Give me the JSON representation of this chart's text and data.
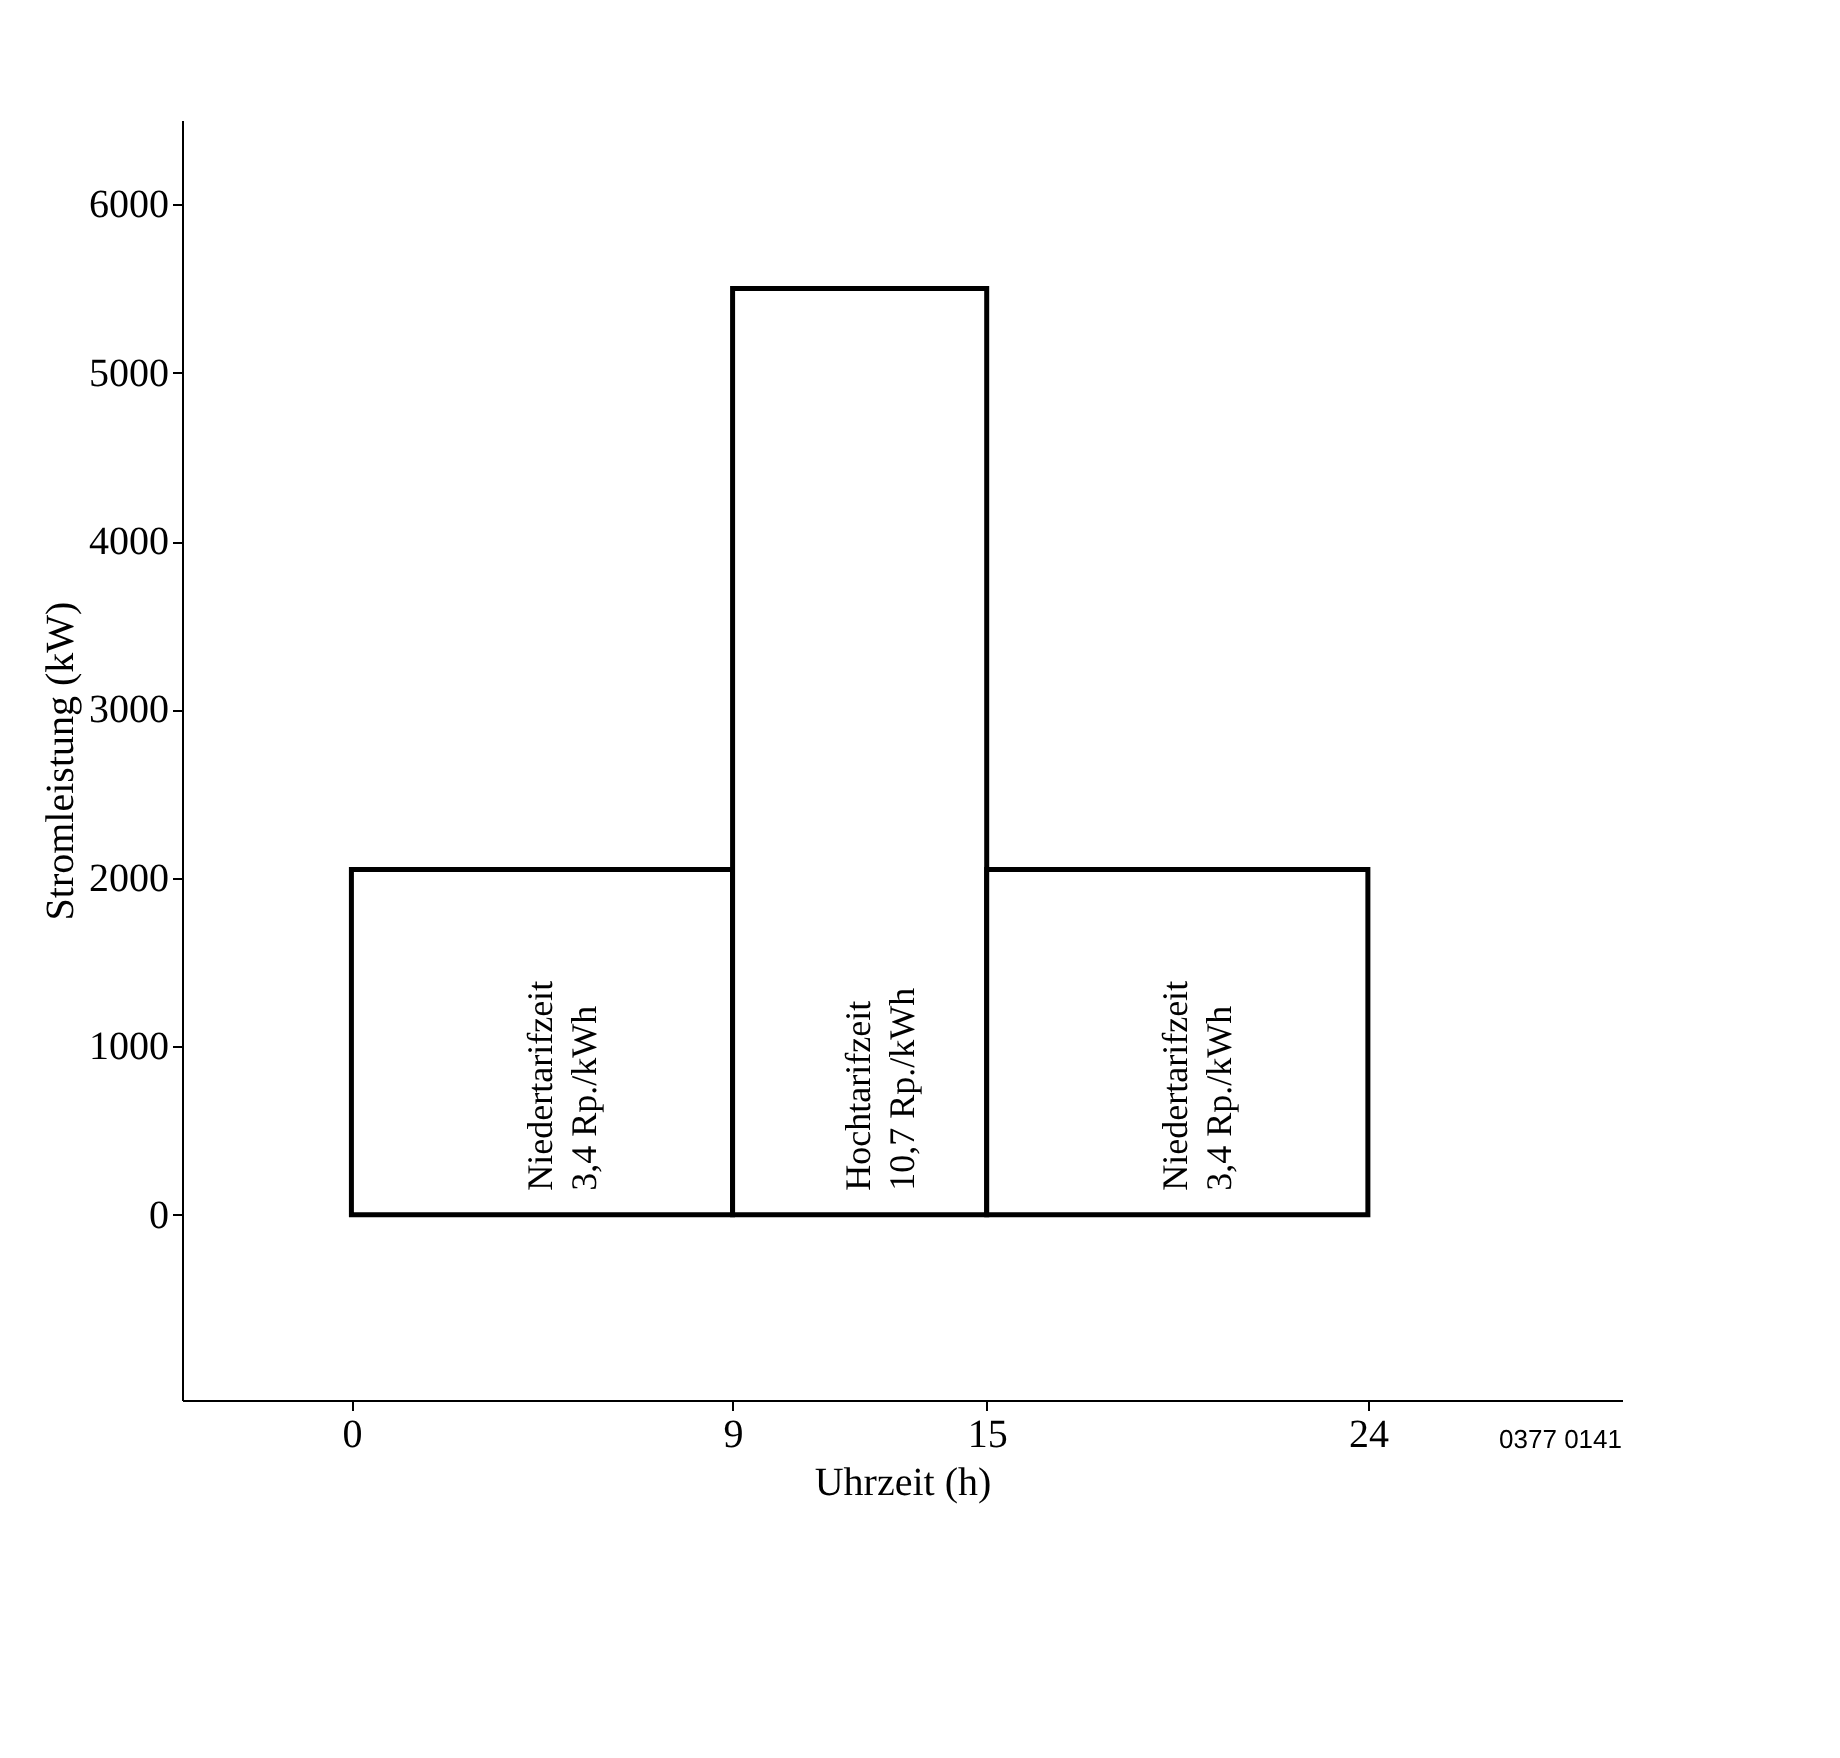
{
  "chart_data": {
    "type": "histogram",
    "xlabel": "Uhrzeit (h)",
    "ylabel": "Stromleistung (kW)",
    "bins": [
      0,
      9,
      15,
      24
    ],
    "values": [
      2050,
      5500,
      2050
    ],
    "color": "#ffffff",
    "xlim": [
      -4,
      30
    ],
    "xticks": [
      0,
      9,
      15,
      24
    ],
    "ylim": [
      -1100,
      6500
    ],
    "yticks": [
      0,
      1000,
      2000,
      3000,
      4000,
      5000,
      6000
    ],
    "grid": false,
    "annotations": [
      "Niedertarifzeit\n3,4 Rp./kWh",
      "Hochtarifzeit\n10,7 Rp./kWh",
      "Niedertarifzeit\n3,4 Rp./kWh",
      "0377 0141"
    ]
  }
}
